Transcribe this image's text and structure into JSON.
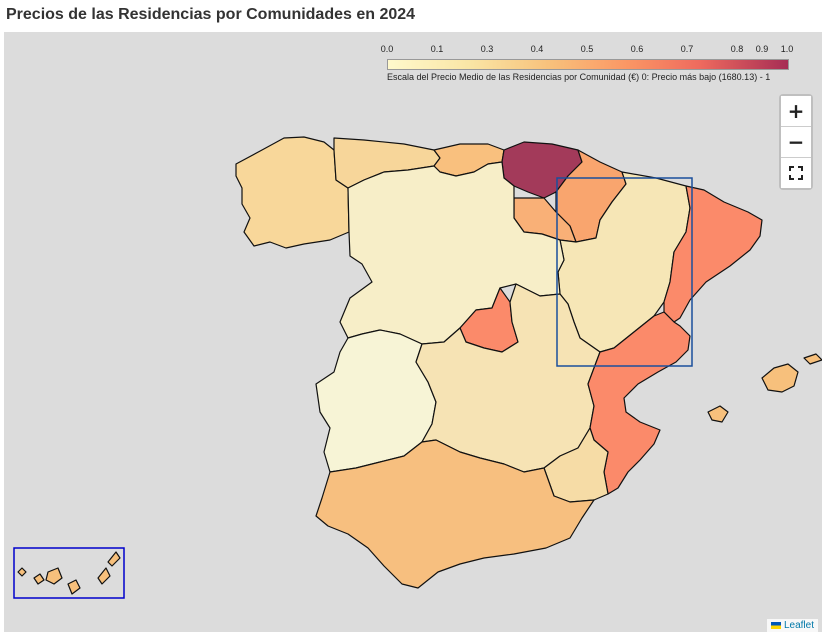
{
  "title": "Precios de las Residencias por Comunidades en 2024",
  "legend": {
    "ticks": [
      "0.0",
      "0.1",
      "0.3",
      "0.4",
      "0.5",
      "0.6",
      "0.7",
      "0.8",
      "0.9",
      "1.0"
    ],
    "tick_values": [
      0.0,
      0.1,
      0.3,
      0.4,
      0.5,
      0.6,
      0.7,
      0.8,
      0.9,
      1.0
    ],
    "caption": "Escala del Precio Medio de las Residencias por Comunidad (€) 0: Precio más bajo (1680.13) - 1"
  },
  "controls": {
    "zoom_in": "+",
    "zoom_out": "−",
    "fullscreen_icon": "fullscreen-icon"
  },
  "attribution": {
    "label": "Leaflet"
  },
  "colors": {
    "background": "#dcdcdc",
    "lightest": "#f7f2cf",
    "light": "#f6e3b4",
    "mid": "#f7c07c",
    "orange": "#f9a56e",
    "red": "#fb8a6a",
    "dark": "#a33a5a",
    "inset_border": "#0000cc"
  }
}
